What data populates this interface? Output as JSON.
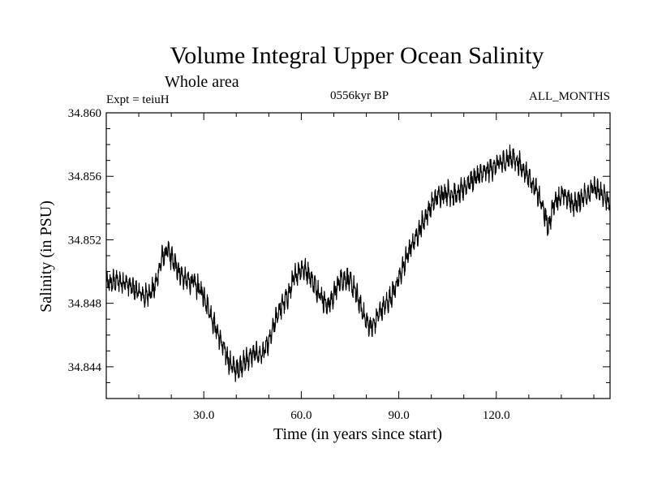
{
  "chart_data": {
    "type": "line",
    "title": "Volume Integral Upper Ocean Salinity",
    "subtitle": "Whole area",
    "experiment_label": "Expt = teiuH",
    "period_label": "0556kyr BP",
    "months_label": "ALL_MONTHS",
    "xlabel": "Time (in years since start)",
    "ylabel": "Salinity (in PSU)",
    "xlim": [
      0,
      155
    ],
    "ylim": [
      34.842,
      34.86
    ],
    "x_ticks": [
      30,
      60,
      90,
      120
    ],
    "x_tick_labels": [
      "30.0",
      "60.0",
      "90.0",
      "120.0"
    ],
    "y_ticks": [
      34.844,
      34.848,
      34.852,
      34.856,
      34.86
    ],
    "y_tick_labels": [
      "34.844",
      "34.848",
      "34.852",
      "34.856",
      "34.860"
    ],
    "grid": false,
    "monthly_step_years": 0.0833333,
    "noise_amplitude_psu": 0.0009,
    "series": [
      {
        "name": "Salinity",
        "color": "#000000",
        "trend_x": [
          0,
          3,
          6,
          9,
          12,
          15,
          17,
          19,
          21,
          24,
          27,
          30,
          33,
          36,
          38,
          40,
          42,
          45,
          48,
          50,
          53,
          56,
          58,
          60,
          62,
          64,
          66,
          68,
          70,
          72,
          74,
          76,
          78,
          80,
          82,
          84,
          87,
          90,
          93,
          96,
          99,
          102,
          105,
          108,
          111,
          114,
          117,
          120,
          123,
          125,
          127,
          130,
          132,
          134,
          136,
          138,
          141,
          144,
          147,
          150,
          153,
          155
        ],
        "trend_y": [
          34.8492,
          34.8494,
          34.8493,
          34.8488,
          34.8484,
          34.849,
          34.8508,
          34.8513,
          34.8505,
          34.8495,
          34.8493,
          34.8485,
          34.8468,
          34.8452,
          34.8442,
          34.8438,
          34.8442,
          34.8448,
          34.8448,
          34.8455,
          34.8475,
          34.8485,
          34.8497,
          34.8502,
          34.85,
          34.8492,
          34.8485,
          34.8478,
          34.8485,
          34.8495,
          34.8496,
          34.849,
          34.848,
          34.8468,
          34.8465,
          34.8474,
          34.8482,
          34.8495,
          34.8512,
          34.8525,
          34.8538,
          34.8548,
          34.855,
          34.8548,
          34.8555,
          34.856,
          34.8563,
          34.8567,
          34.857,
          34.8572,
          34.8568,
          34.856,
          34.8552,
          34.8542,
          34.8528,
          34.8545,
          34.8548,
          34.8542,
          34.8548,
          34.8552,
          34.8548,
          34.8542
        ]
      }
    ]
  }
}
